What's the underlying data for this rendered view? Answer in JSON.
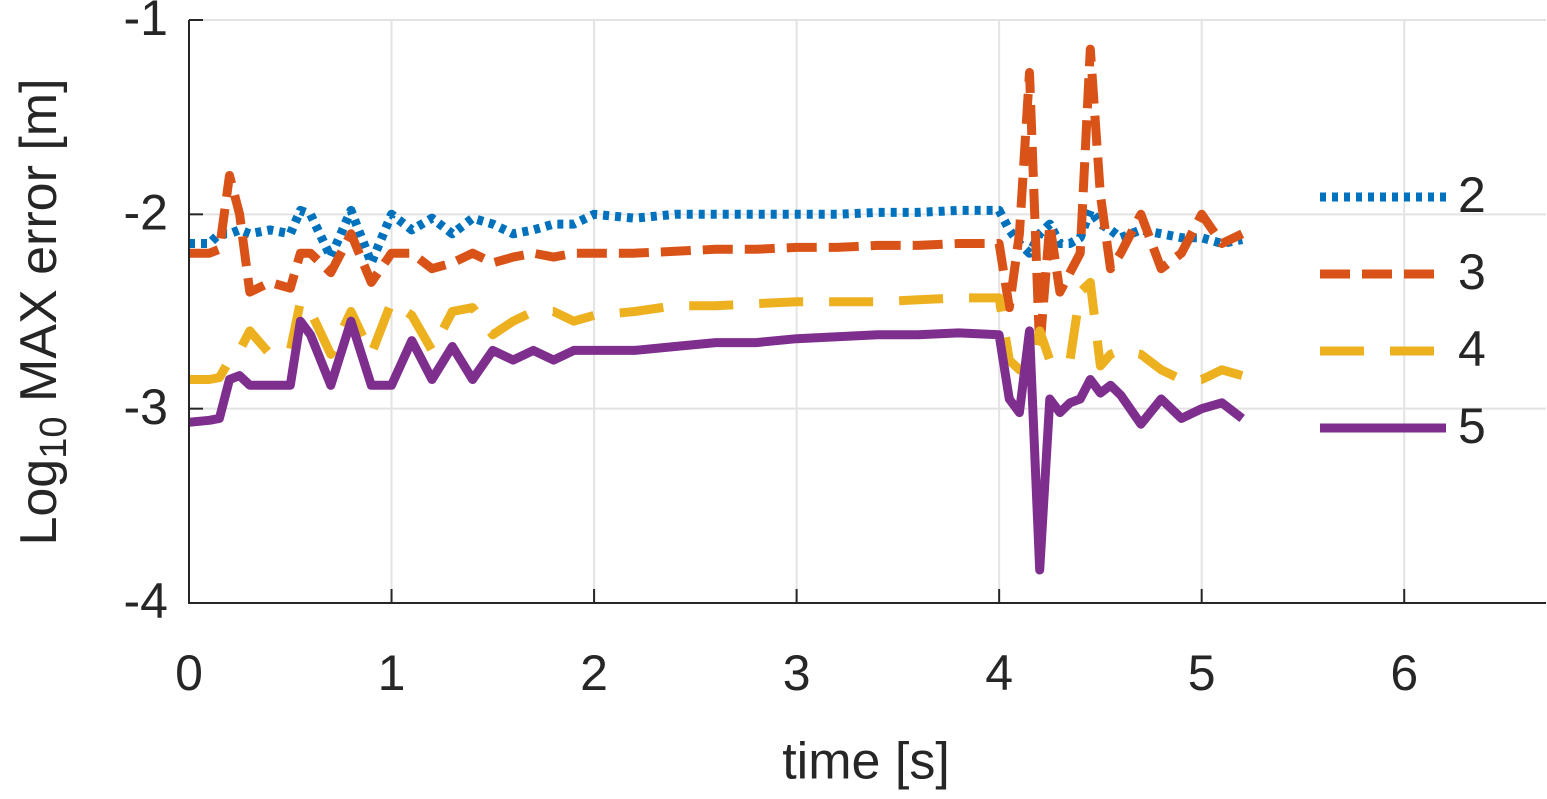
{
  "chart_data": {
    "type": "line",
    "xlabel": "time [s]",
    "ylabel": {
      "base": "Log",
      "sub": "10",
      "rest": " MAX error [m]"
    },
    "xlim": [
      0,
      6.7
    ],
    "xticks": [
      0,
      1,
      2,
      3,
      4,
      5,
      6
    ],
    "ylim": [
      -4,
      -1
    ],
    "yticks": [
      -4,
      -3,
      -2,
      -1
    ],
    "grid": true,
    "legend": "right",
    "x": [
      0,
      0.1,
      0.15,
      0.2,
      0.25,
      0.3,
      0.4,
      0.5,
      0.55,
      0.6,
      0.7,
      0.8,
      0.9,
      1.0,
      1.1,
      1.2,
      1.3,
      1.4,
      1.5,
      1.6,
      1.7,
      1.8,
      1.9,
      2.0,
      2.2,
      2.4,
      2.6,
      2.8,
      3.0,
      3.2,
      3.4,
      3.6,
      3.8,
      4.0,
      4.05,
      4.1,
      4.15,
      4.2,
      4.25,
      4.3,
      4.35,
      4.4,
      4.45,
      4.5,
      4.55,
      4.6,
      4.7,
      4.8,
      4.9,
      5.0,
      5.1,
      5.2
    ],
    "series": [
      {
        "name": "2",
        "color": "#0072bd",
        "linestyle": "dotted",
        "values": [
          -2.15,
          -2.15,
          -2.1,
          -2.1,
          -2.08,
          -2.1,
          -2.08,
          -2.1,
          -1.98,
          -2.0,
          -2.22,
          -1.98,
          -2.25,
          -2.0,
          -2.08,
          -2.02,
          -2.1,
          -2.02,
          -2.05,
          -2.1,
          -2.08,
          -2.05,
          -2.05,
          -2.0,
          -2.02,
          -2.0,
          -2.0,
          -2.0,
          -2.0,
          -2.0,
          -1.99,
          -1.99,
          -1.98,
          -1.98,
          -2.08,
          -2.15,
          -2.2,
          -2.1,
          -2.05,
          -2.15,
          -2.15,
          -2.12,
          -1.98,
          -2.05,
          -2.08,
          -2.12,
          -2.08,
          -2.1,
          -2.12,
          -2.12,
          -2.15,
          -2.13
        ]
      },
      {
        "name": "3",
        "color": "#d95319",
        "linestyle": "dashed",
        "values": [
          -2.2,
          -2.2,
          -2.18,
          -1.8,
          -2.0,
          -2.4,
          -2.35,
          -2.38,
          -2.2,
          -2.2,
          -2.3,
          -2.1,
          -2.35,
          -2.2,
          -2.2,
          -2.28,
          -2.25,
          -2.2,
          -2.25,
          -2.22,
          -2.2,
          -2.22,
          -2.2,
          -2.2,
          -2.2,
          -2.19,
          -2.18,
          -2.18,
          -2.17,
          -2.17,
          -2.16,
          -2.16,
          -2.15,
          -2.15,
          -2.48,
          -2.1,
          -1.27,
          -2.7,
          -2.05,
          -2.4,
          -2.3,
          -2.2,
          -1.15,
          -1.9,
          -2.28,
          -2.2,
          -2.0,
          -2.28,
          -2.2,
          -2.0,
          -2.15,
          -2.1
        ]
      },
      {
        "name": "4",
        "color": "#edb120",
        "linestyle": "longdash",
        "values": [
          -2.85,
          -2.85,
          -2.84,
          -2.75,
          -2.7,
          -2.6,
          -2.72,
          -2.7,
          -2.45,
          -2.5,
          -2.72,
          -2.5,
          -2.72,
          -2.45,
          -2.52,
          -2.7,
          -2.5,
          -2.48,
          -2.62,
          -2.55,
          -2.5,
          -2.5,
          -2.55,
          -2.52,
          -2.5,
          -2.47,
          -2.47,
          -2.46,
          -2.45,
          -2.45,
          -2.45,
          -2.44,
          -2.43,
          -2.43,
          -2.75,
          -2.8,
          -2.78,
          -2.6,
          -2.75,
          -2.78,
          -2.75,
          -2.4,
          -2.35,
          -2.78,
          -2.72,
          -2.7,
          -2.72,
          -2.8,
          -2.85,
          -2.85,
          -2.8,
          -2.83
        ]
      },
      {
        "name": "5",
        "color": "#7e2f8e",
        "linestyle": "solid",
        "values": [
          -3.07,
          -3.06,
          -3.05,
          -2.85,
          -2.83,
          -2.88,
          -2.88,
          -2.88,
          -2.55,
          -2.62,
          -2.88,
          -2.55,
          -2.88,
          -2.88,
          -2.65,
          -2.85,
          -2.68,
          -2.85,
          -2.7,
          -2.75,
          -2.7,
          -2.75,
          -2.7,
          -2.7,
          -2.7,
          -2.68,
          -2.66,
          -2.66,
          -2.64,
          -2.63,
          -2.62,
          -2.62,
          -2.61,
          -2.62,
          -2.95,
          -3.02,
          -2.6,
          -3.83,
          -2.95,
          -3.02,
          -2.97,
          -2.95,
          -2.85,
          -2.92,
          -2.88,
          -2.93,
          -3.08,
          -2.95,
          -3.05,
          -3.0,
          -2.97,
          -3.05
        ]
      }
    ]
  }
}
